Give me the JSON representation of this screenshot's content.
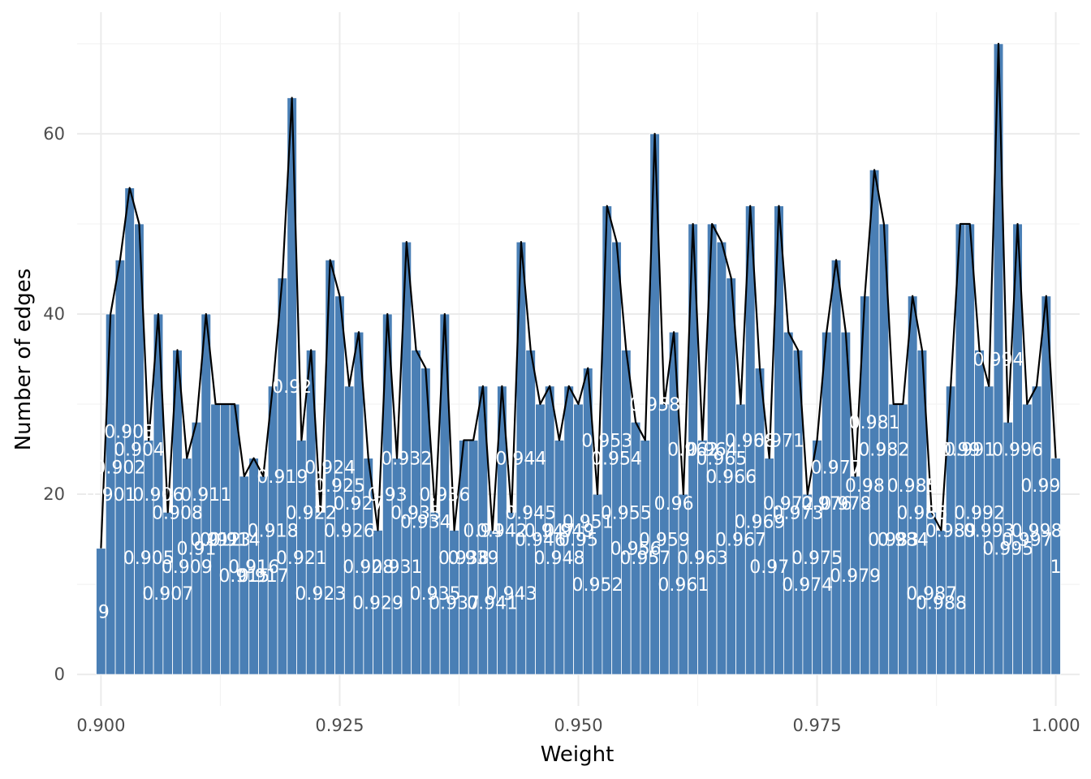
{
  "chart_data": {
    "type": "bar",
    "xlabel": "Weight",
    "ylabel": "Number of edges",
    "xlim": [
      0.8975,
      1.0025
    ],
    "ylim": [
      -3.5,
      73.5
    ],
    "x_ticks": [
      "0.900",
      "0.925",
      "0.950",
      "0.975",
      "1.000"
    ],
    "x_tick_values": [
      0.9,
      0.925,
      0.95,
      0.975,
      1.0
    ],
    "y_ticks": [
      "0",
      "20",
      "40",
      "60"
    ],
    "y_tick_values": [
      0,
      20,
      40,
      60
    ],
    "grid": true,
    "bar_color": "#4a7fb5",
    "line_color": "#000000",
    "label_color": "#ffffff",
    "bins": [
      0.9,
      0.901,
      0.902,
      0.903,
      0.904,
      0.905,
      0.906,
      0.907,
      0.908,
      0.909,
      0.91,
      0.911,
      0.912,
      0.913,
      0.914,
      0.915,
      0.916,
      0.917,
      0.918,
      0.919,
      0.92,
      0.921,
      0.922,
      0.923,
      0.924,
      0.925,
      0.926,
      0.927,
      0.928,
      0.929,
      0.93,
      0.931,
      0.932,
      0.933,
      0.934,
      0.935,
      0.936,
      0.937,
      0.938,
      0.939,
      0.94,
      0.941,
      0.942,
      0.943,
      0.944,
      0.945,
      0.946,
      0.947,
      0.948,
      0.949,
      0.95,
      0.951,
      0.952,
      0.953,
      0.954,
      0.955,
      0.956,
      0.957,
      0.958,
      0.959,
      0.96,
      0.961,
      0.962,
      0.963,
      0.964,
      0.965,
      0.966,
      0.967,
      0.968,
      0.969,
      0.97,
      0.971,
      0.972,
      0.973,
      0.974,
      0.975,
      0.976,
      0.977,
      0.978,
      0.979,
      0.98,
      0.981,
      0.982,
      0.983,
      0.984,
      0.985,
      0.986,
      0.987,
      0.988,
      0.989,
      0.99,
      0.991,
      0.992,
      0.993,
      0.994,
      0.995,
      0.996,
      0.997,
      0.998,
      0.999,
      1.0
    ],
    "values": [
      14,
      40,
      46,
      54,
      50,
      26,
      40,
      18,
      36,
      24,
      28,
      40,
      30,
      30,
      30,
      22,
      24,
      22,
      32,
      44,
      64,
      26,
      36,
      18,
      46,
      42,
      32,
      38,
      24,
      16,
      40,
      24,
      48,
      36,
      34,
      18,
      40,
      16,
      26,
      26,
      32,
      16,
      32,
      18,
      48,
      36,
      30,
      32,
      26,
      32,
      30,
      34,
      20,
      52,
      48,
      36,
      28,
      26,
      60,
      30,
      38,
      20,
      50,
      26,
      50,
      48,
      44,
      30,
      52,
      34,
      24,
      52,
      38,
      36,
      20,
      26,
      38,
      46,
      38,
      22,
      42,
      56,
      50,
      30,
      30,
      42,
      36,
      18,
      16,
      32,
      50,
      50,
      36,
      32,
      70,
      28,
      50,
      30,
      32,
      42,
      24
    ],
    "labels": [
      ".9",
      "0.901",
      "0.902",
      "0.903",
      "0.904",
      "0.905",
      "0.906",
      "0.907",
      "0.908",
      "0.909",
      "0.91",
      "0.911",
      "0.912",
      "0.913",
      "0.914",
      "0.915",
      "0.916",
      "0.917",
      "0.918",
      "0.919",
      "0.92",
      "0.921",
      "0.922",
      "0.923",
      "0.924",
      "0.925",
      "0.926",
      "0.927",
      "0.928",
      "0.929",
      "0.93",
      "0.931",
      "0.932",
      "0.933",
      "0.934",
      "0.935",
      "0.936",
      "0.937",
      "0.938",
      "0.939",
      "0.94",
      "0.941",
      "0.942",
      "0.943",
      "0.944",
      "0.945",
      "0.946",
      "0.947",
      "0.948",
      "0.949",
      "0.95",
      "0.951",
      "0.952",
      "0.953",
      "0.954",
      "0.955",
      "0.956",
      "0.957",
      "0.958",
      "0.959",
      "0.96",
      "0.961",
      "0.962",
      "0.963",
      "0.964",
      "0.965",
      "0.966",
      "0.967",
      "0.968",
      "0.969",
      "0.97",
      "0.971",
      "0.972",
      "0.973",
      "0.974",
      "0.975",
      "0.976",
      "0.977",
      "0.978",
      "0.979",
      "0.98",
      "0.981",
      "0.982",
      "0.983",
      "0.984",
      "0.985",
      "0.986",
      "0.987",
      "0.988",
      "0.989",
      "0.99",
      "0.991",
      "0.992",
      "0.993",
      "0.994",
      "0.995",
      "0.996",
      "0.997",
      "0.998",
      "0.999",
      "1"
    ]
  }
}
